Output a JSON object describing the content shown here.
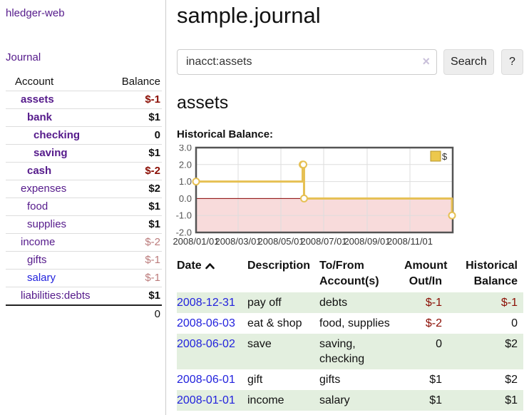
{
  "colors": {
    "link_purple": "#551a8b",
    "link_blue": "#2222dd",
    "negative_strong": "#8b0e04",
    "negative_muted": "#bb7b7b",
    "row_stripe_green": "#e3efdf"
  },
  "sidebar": {
    "brand": "hledger-web",
    "nav_journal": "Journal",
    "accounts_table": {
      "header_account": "Account",
      "header_balance": "Balance",
      "rows": [
        {
          "name": "assets",
          "balance": "$-1"
        },
        {
          "name": "bank",
          "balance": "$1"
        },
        {
          "name": "checking",
          "balance": "0"
        },
        {
          "name": "saving",
          "balance": "$1"
        },
        {
          "name": "cash",
          "balance": "$-2"
        },
        {
          "name": "expenses",
          "balance": "$2"
        },
        {
          "name": "food",
          "balance": "$1"
        },
        {
          "name": "supplies",
          "balance": "$1"
        },
        {
          "name": "income",
          "balance": "$-2"
        },
        {
          "name": "gifts",
          "balance": "$-1"
        },
        {
          "name": "salary",
          "balance": "$-1"
        },
        {
          "name": "liabilities:debts",
          "balance": "$1"
        }
      ],
      "total": "0"
    }
  },
  "header": {
    "title": "sample.journal"
  },
  "search": {
    "value": "inacct:assets",
    "clear_icon": "×",
    "search_button": "Search",
    "help_button": "?"
  },
  "account_page": {
    "heading": "assets",
    "chart_label": "Historical Balance:"
  },
  "chart_data": {
    "type": "line",
    "step": true,
    "title": "Historical Balance:",
    "xlabel": "",
    "ylabel": "",
    "ylim": [
      -2,
      3
    ],
    "y_ticks": [
      3,
      2,
      1,
      0,
      -1,
      -2
    ],
    "x_range": [
      "2008-01-01",
      "2008-12-31"
    ],
    "x_tick_labels": [
      "2008/01/01",
      "2008/03/01",
      "2008/05/01",
      "2008/07/01",
      "2008/09/01",
      "2008/11/01"
    ],
    "grid": true,
    "legend_position": "top-right",
    "series": [
      {
        "name": "$",
        "points": [
          [
            "2008-01-01",
            1
          ],
          [
            "2008-06-01",
            2
          ],
          [
            "2008-06-02",
            2
          ],
          [
            "2008-06-03",
            0
          ],
          [
            "2008-12-31",
            -1
          ]
        ]
      }
    ],
    "colors": {
      "line": "#e6c053",
      "marker_fill": "#ffffff",
      "negative_fill": "#f8dbdb",
      "zero_line": "#8b0000",
      "grid": "#dddddd",
      "border": "#545454",
      "legend_fill": "#ecc84d",
      "legend_border": "#b5952e"
    }
  },
  "register": {
    "headers": {
      "date": "Date",
      "description": "Description",
      "account_line1": "To/From",
      "account_line2": "Account(s)",
      "amount_line1": "Amount",
      "amount_line2": "Out/In",
      "balance_line1": "Historical",
      "balance_line2": "Balance"
    },
    "rows": [
      {
        "date": "2008-12-31",
        "description": "pay off",
        "accounts": "debts",
        "amount": "$-1",
        "balance": "$-1"
      },
      {
        "date": "2008-06-03",
        "description": "eat & shop",
        "accounts": "food, supplies",
        "amount": "$-2",
        "balance": "0"
      },
      {
        "date": "2008-06-02",
        "description": "save",
        "accounts": "saving, checking",
        "amount": "0",
        "balance": "$2"
      },
      {
        "date": "2008-06-01",
        "description": "gift",
        "accounts": "gifts",
        "amount": "$1",
        "balance": "$2"
      },
      {
        "date": "2008-01-01",
        "description": "income",
        "accounts": "salary",
        "amount": "$1",
        "balance": "$1"
      }
    ]
  }
}
